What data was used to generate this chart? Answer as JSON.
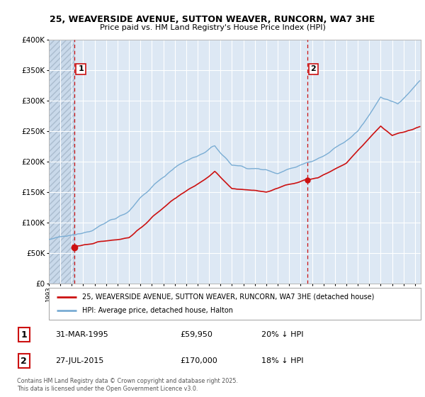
{
  "title_line1": "25, WEAVERSIDE AVENUE, SUTTON WEAVER, RUNCORN, WA7 3HE",
  "title_line2": "Price paid vs. HM Land Registry's House Price Index (HPI)",
  "background_color": "#dde8f4",
  "grid_color": "#ffffff",
  "red_line_color": "#cc1111",
  "blue_line_color": "#7aadd4",
  "vline_color": "#cc1111",
  "legend1": "25, WEAVERSIDE AVENUE, SUTTON WEAVER, RUNCORN, WA7 3HE (detached house)",
  "legend2": "HPI: Average price, detached house, Halton",
  "sale1_label": "1",
  "sale1_date": "31-MAR-1995",
  "sale1_price": "£59,950",
  "sale1_hpi": "20% ↓ HPI",
  "sale2_label": "2",
  "sale2_date": "27-JUL-2015",
  "sale2_price": "£170,000",
  "sale2_hpi": "18% ↓ HPI",
  "footnote": "Contains HM Land Registry data © Crown copyright and database right 2025.\nThis data is licensed under the Open Government Licence v3.0.",
  "ylim": [
    0,
    400000
  ],
  "yticks": [
    0,
    50000,
    100000,
    150000,
    200000,
    250000,
    300000,
    350000,
    400000
  ],
  "xstart_year": 1993,
  "xend_year": 2025,
  "sale1_year": 1995.25,
  "sale2_year": 2015.58
}
